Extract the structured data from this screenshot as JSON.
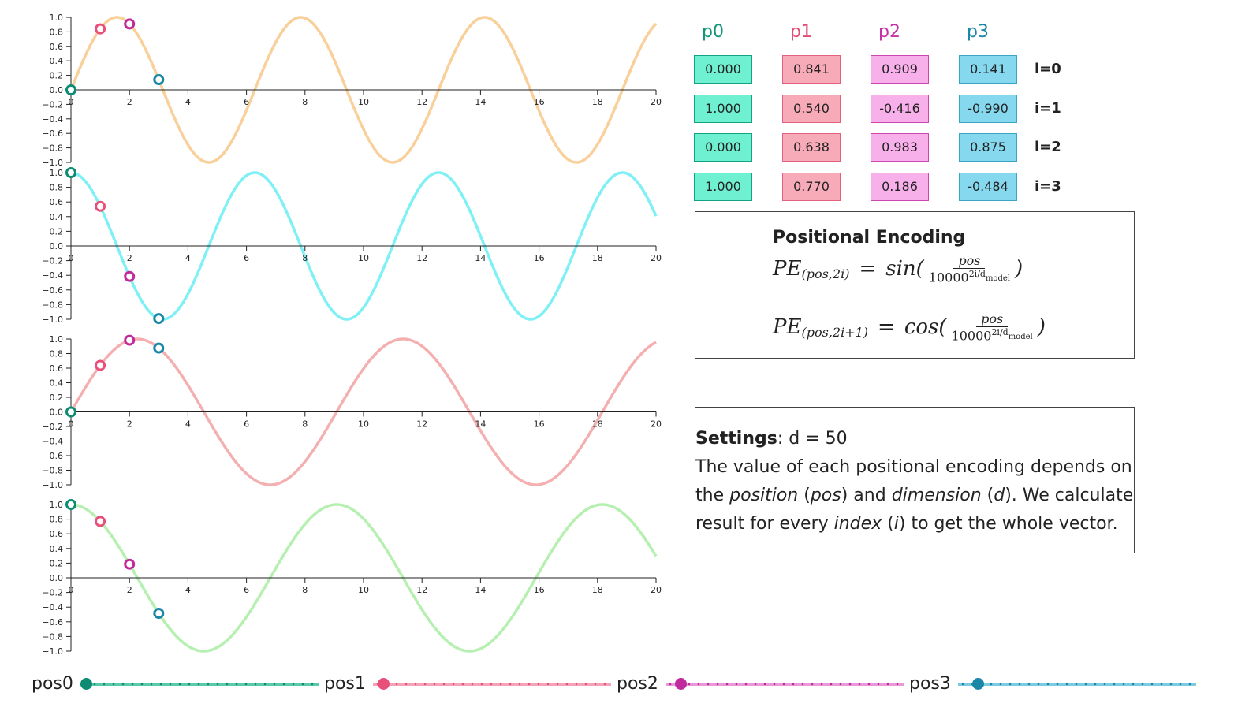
{
  "chart_data": {
    "type": "line",
    "x_range": [
      0,
      20
    ],
    "y_range": [
      -1,
      1
    ],
    "x_ticks": [
      "0",
      "2",
      "4",
      "6",
      "8",
      "10",
      "12",
      "14",
      "16",
      "18",
      "20"
    ],
    "y_ticks": [
      "1.0",
      "0.8",
      "0.6",
      "0.4",
      "0.2",
      "0.0",
      "-0.2",
      "-0.4",
      "-0.6",
      "-0.8",
      "-1.0"
    ],
    "grid": false,
    "subplots": [
      {
        "name": "i=0",
        "func": "sin",
        "freq": 1.0,
        "color": "#f9cf9a",
        "points": [
          {
            "x": 0,
            "y": 0.0
          },
          {
            "x": 1,
            "y": 0.841
          },
          {
            "x": 2,
            "y": 0.909
          },
          {
            "x": 3,
            "y": 0.141
          }
        ]
      },
      {
        "name": "i=1",
        "func": "cos",
        "freq": 1.0,
        "color": "#7ff0f5",
        "points": [
          {
            "x": 0,
            "y": 1.0
          },
          {
            "x": 1,
            "y": 0.54
          },
          {
            "x": 2,
            "y": -0.416
          },
          {
            "x": 3,
            "y": -0.99
          }
        ]
      },
      {
        "name": "i=2",
        "func": "sin",
        "freq": 0.6918,
        "color": "#f4b0b0",
        "points": [
          {
            "x": 0,
            "y": 0.0
          },
          {
            "x": 1,
            "y": 0.638
          },
          {
            "x": 2,
            "y": 0.983
          },
          {
            "x": 3,
            "y": 0.875
          }
        ]
      },
      {
        "name": "i=3",
        "func": "cos",
        "freq": 0.6918,
        "color": "#b6f0b0",
        "points": [
          {
            "x": 0,
            "y": 1.0
          },
          {
            "x": 1,
            "y": 0.77
          },
          {
            "x": 2,
            "y": 0.186
          },
          {
            "x": 3,
            "y": -0.484
          }
        ]
      }
    ],
    "point_colors": [
      "#0e8c73",
      "#e8507a",
      "#c02a9c",
      "#1a86a8"
    ]
  },
  "table": {
    "columns": [
      {
        "label": "p0",
        "head_color": "#11967a",
        "fill": "#6ff0d0",
        "border": "#13a384"
      },
      {
        "label": "p1",
        "head_color": "#e34b75",
        "fill": "#f7aab7",
        "border": "#e0607d"
      },
      {
        "label": "p2",
        "head_color": "#c531a6",
        "fill": "#f7b0ea",
        "border": "#cc46b2"
      },
      {
        "label": "p3",
        "head_color": "#1a86a8",
        "fill": "#86d8ef",
        "border": "#3aa4c5"
      }
    ],
    "rows": [
      {
        "label": "i=0",
        "values": [
          "0.000",
          "0.841",
          "0.909",
          "0.141"
        ]
      },
      {
        "label": "i=1",
        "values": [
          "1.000",
          "0.540",
          "-0.416",
          "-0.990"
        ]
      },
      {
        "label": "i=2",
        "values": [
          "0.000",
          "0.638",
          "0.983",
          "0.875"
        ]
      },
      {
        "label": "i=3",
        "values": [
          "1.000",
          "0.770",
          "0.186",
          "-0.484"
        ]
      }
    ]
  },
  "formula": {
    "title": "Positional Encoding",
    "line1": {
      "lhs": "PE",
      "sub": "(pos,2i)",
      "func": "sin(",
      "num": "pos",
      "den_base": "10000",
      "den_exp": "2i/d",
      "den_sub": "model",
      "close": ")"
    },
    "line2": {
      "lhs": "PE",
      "sub": "(pos,2i+1)",
      "func": "cos(",
      "num": "pos",
      "den_base": "10000",
      "den_exp": "2i/d",
      "den_sub": "model",
      "close": ")"
    }
  },
  "settings": {
    "label": "Settings",
    "value": ": d = 50",
    "line1": "The value of each positional encoding depends on",
    "line2_a": "the ",
    "line2_b": "position",
    "line2_c": " (",
    "line2_d": "pos",
    "line2_e": ") and ",
    "line2_f": "dimension",
    "line2_g": " (",
    "line2_h": "d",
    "line2_i": "). We calculate",
    "line3_a": "result for every ",
    "line3_b": "index",
    "line3_c": " (",
    "line3_d": "i",
    "line3_e": ") to get the whole vector."
  },
  "sliders": [
    {
      "label": "pos0",
      "value": 0,
      "color": "#0e8c73",
      "track": "#5cc9ab"
    },
    {
      "label": "pos1",
      "value": 1,
      "color": "#e8507a",
      "track": "#f5a4b8"
    },
    {
      "label": "pos2",
      "value": 2,
      "color": "#c02a9c",
      "track": "#e79ad7"
    },
    {
      "label": "pos3",
      "value": 3,
      "color": "#1a86a8",
      "track": "#7ccbe0"
    }
  ],
  "slider_max": 50
}
